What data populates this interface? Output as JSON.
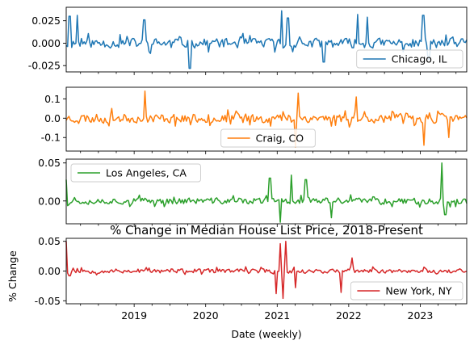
{
  "chart_data": {
    "type": "line",
    "title": "% Change in Median House List Price, 2018-Present",
    "xlabel": "Date (weekly)",
    "ylabel": "% Change",
    "x_range": [
      "2018-01",
      "2023-08"
    ],
    "x_ticks": [
      "2019",
      "2020",
      "2021",
      "2022",
      "2023"
    ],
    "grid": false,
    "panels": [
      {
        "name": "Chicago, IL",
        "color": "#1f77b4",
        "ylim": [
          -0.032,
          0.04
        ],
        "yticks": [
          "0.025",
          "0.000",
          "-0.025"
        ],
        "yticks_values": [
          0.025,
          0.0,
          -0.025
        ],
        "legend_loc": "lower-right",
        "seed": 11,
        "base_amp": 0.009,
        "spikes": [
          [
            2018.1,
            0.03
          ],
          [
            2018.2,
            0.031
          ],
          [
            2019.14,
            0.026
          ],
          [
            2019.78,
            -0.028
          ],
          [
            2021.06,
            0.036
          ],
          [
            2021.15,
            0.028
          ],
          [
            2021.65,
            -0.021
          ],
          [
            2022.13,
            0.032
          ],
          [
            2022.26,
            0.029
          ],
          [
            2023.04,
            0.031
          ],
          [
            2023.12,
            -0.018
          ]
        ]
      },
      {
        "name": "Craig, CO",
        "color": "#ff7f0e",
        "ylim": [
          -0.17,
          0.16
        ],
        "yticks": [
          "0.1",
          "0.0",
          "-0.1"
        ],
        "yticks_values": [
          0.1,
          0.0,
          -0.1
        ],
        "legend_loc": "lower-center",
        "seed": 23,
        "base_amp": 0.04,
        "spikes": [
          [
            2019.15,
            0.14
          ],
          [
            2021.26,
            -0.15
          ],
          [
            2021.3,
            0.13
          ],
          [
            2023.05,
            -0.14
          ],
          [
            2023.4,
            -0.1
          ],
          [
            2022.1,
            0.11
          ]
        ]
      },
      {
        "name": "Los Angeles, CA",
        "color": "#2ca02c",
        "ylim": [
          -0.03,
          0.055
        ],
        "yticks": [
          "0.05",
          "0.00"
        ],
        "yticks_values": [
          0.05,
          0.0
        ],
        "legend_loc": "upper-left",
        "seed": 37,
        "base_amp": 0.007,
        "spikes": [
          [
            2018.05,
            0.028
          ],
          [
            2020.9,
            0.03
          ],
          [
            2021.05,
            -0.028
          ],
          [
            2021.2,
            0.034
          ],
          [
            2021.4,
            0.028
          ],
          [
            2023.3,
            0.05
          ],
          [
            2023.35,
            -0.018
          ],
          [
            2021.75,
            -0.022
          ]
        ]
      },
      {
        "name": "New York, NY",
        "color": "#d62728",
        "ylim": [
          -0.055,
          0.055
        ],
        "yticks": [
          "0.05",
          "0.00",
          "-0.05"
        ],
        "yticks_values": [
          0.05,
          0.0,
          -0.05
        ],
        "legend_loc": "lower-right",
        "seed": 53,
        "base_amp": 0.006,
        "spikes": [
          [
            2018.05,
            0.05
          ],
          [
            2018.1,
            -0.008
          ],
          [
            2020.99,
            -0.038
          ],
          [
            2021.04,
            0.046
          ],
          [
            2021.08,
            -0.046
          ],
          [
            2021.12,
            0.05
          ],
          [
            2021.25,
            -0.028
          ],
          [
            2021.9,
            -0.036
          ],
          [
            2022.05,
            0.022
          ]
        ]
      }
    ]
  }
}
